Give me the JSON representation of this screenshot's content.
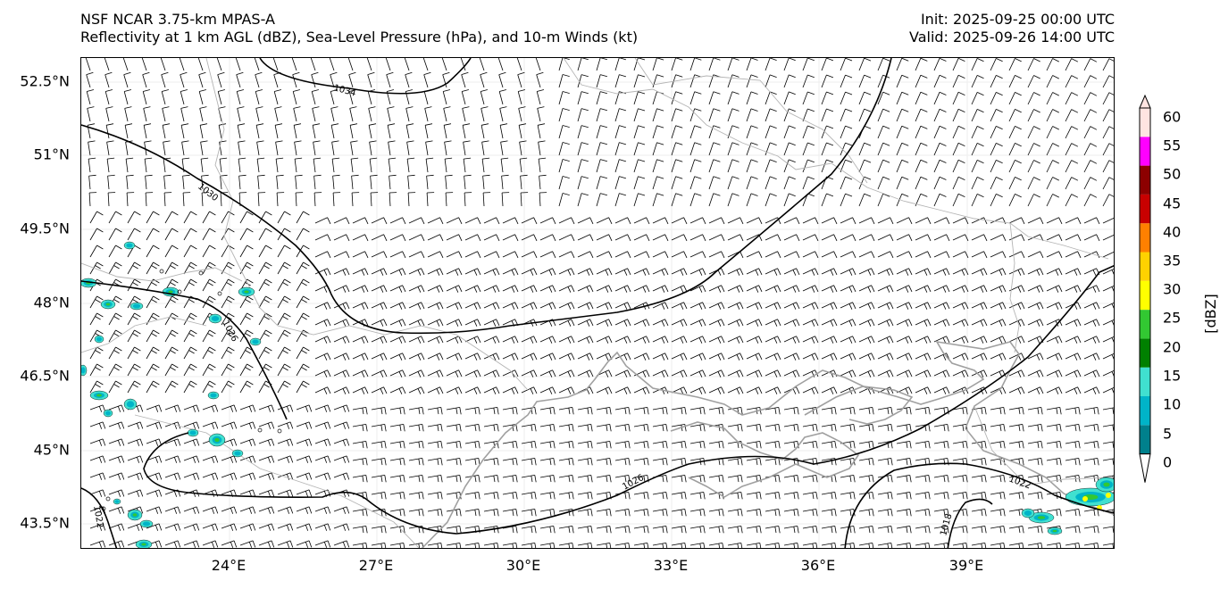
{
  "header": {
    "model": "NSF NCAR 3.75-km MPAS-A",
    "fields": "Reflectivity at 1 km AGL (dBZ), Sea-Level Pressure (hPa), and 10-m Winds (kt)",
    "init": "Init: 2025-09-25 00:00 UTC",
    "valid": "Valid: 2025-09-26 14:00 UTC"
  },
  "axes": {
    "lat_labels": [
      "52.5°N",
      "51°N",
      "49.5°N",
      "48°N",
      "46.5°N",
      "45°N",
      "43.5°N"
    ],
    "lon_labels": [
      "24°E",
      "27°E",
      "30°E",
      "33°E",
      "36°E",
      "39°E"
    ]
  },
  "isobars": {
    "labels": [
      "1034",
      "1030",
      "1026",
      "1026",
      "1022",
      "1022",
      "1018"
    ]
  },
  "colorbar": {
    "title": "[dBZ]",
    "ticks": [
      "0",
      "5",
      "10",
      "15",
      "20",
      "25",
      "30",
      "35",
      "40",
      "45",
      "50",
      "55",
      "60"
    ],
    "colors": [
      "#ffffff",
      "#00808c",
      "#00b4c8",
      "#40e0d0",
      "#008000",
      "#32c832",
      "#ffff00",
      "#ffd200",
      "#ff8000",
      "#c80000",
      "#8c0000",
      "#ff00ff",
      "#ffe4e1"
    ]
  },
  "colors": {
    "coastline": "#a0a0a0",
    "border": "#b4b4b4",
    "isobar": "#000000",
    "barb": "#000000"
  }
}
